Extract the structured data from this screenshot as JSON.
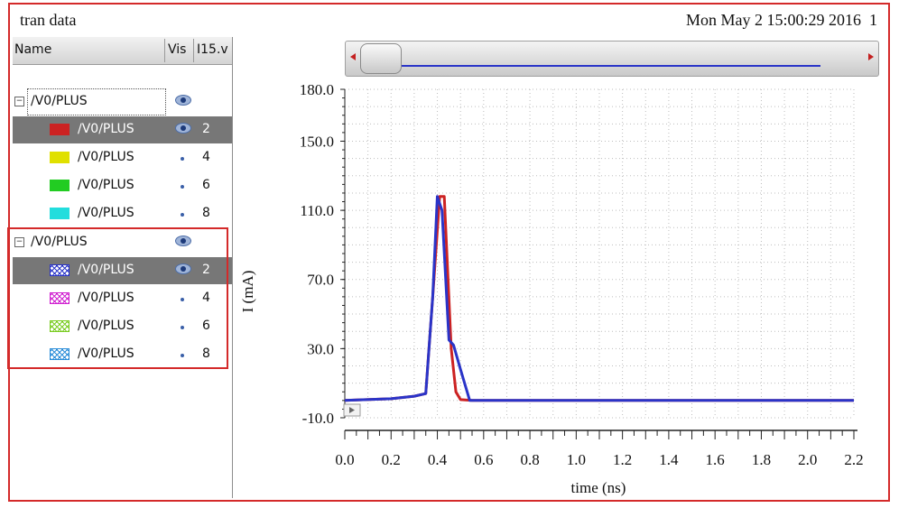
{
  "window": {
    "title": "tran data",
    "timestamp": "Mon May 2 15:00:29 2016",
    "page_number": "1"
  },
  "browser": {
    "columns": {
      "name": "Name",
      "vis": "Vis",
      "third": "I15.v"
    },
    "groups": [
      {
        "label": "/V0/PLUS",
        "traces": [
          {
            "label": "/V0/PLUS",
            "num": "2",
            "color": "#cc2222",
            "style": "solid",
            "selected": true
          },
          {
            "label": "/V0/PLUS",
            "num": "4",
            "color": "#e0e000",
            "style": "solid",
            "selected": false
          },
          {
            "label": "/V0/PLUS",
            "num": "6",
            "color": "#22cc22",
            "style": "solid",
            "selected": false
          },
          {
            "label": "/V0/PLUS",
            "num": "8",
            "color": "#22dddd",
            "style": "solid",
            "selected": false
          }
        ]
      },
      {
        "label": "/V0/PLUS",
        "traces": [
          {
            "label": "/V0/PLUS",
            "num": "2",
            "color": "#2a34c8",
            "style": "hatched",
            "selected": true
          },
          {
            "label": "/V0/PLUS",
            "num": "4",
            "color": "#d020d0",
            "style": "hatched",
            "selected": false
          },
          {
            "label": "/V0/PLUS",
            "num": "6",
            "color": "#7acc22",
            "style": "hatched",
            "selected": false
          },
          {
            "label": "/V0/PLUS",
            "num": "8",
            "color": "#2a8cd8",
            "style": "hatched",
            "selected": false
          }
        ]
      }
    ]
  },
  "chart_data": {
    "type": "line",
    "xlabel": "time (ns)",
    "ylabel": "I (mA)",
    "xlim": [
      0.0,
      2.2
    ],
    "ylim": [
      -10.0,
      180.0
    ],
    "x_ticks": [
      "0.0",
      "0.2",
      "0.4",
      "0.6",
      "0.8",
      "1.0",
      "1.2",
      "1.4",
      "1.6",
      "1.8",
      "2.0",
      "2.2"
    ],
    "y_ticks": [
      "180.0",
      "150.0",
      "110.0",
      "70.0",
      "30.0",
      "-10.0"
    ],
    "y_tick_values": [
      180,
      150,
      110,
      70,
      30,
      -10
    ],
    "grid": true,
    "series": [
      {
        "color": "#cc2222",
        "points": [
          [
            0.0,
            0.0
          ],
          [
            0.2,
            1.0
          ],
          [
            0.3,
            2.5
          ],
          [
            0.35,
            4.0
          ],
          [
            0.38,
            60.0
          ],
          [
            0.41,
            118.0
          ],
          [
            0.43,
            118.0
          ],
          [
            0.46,
            30.0
          ],
          [
            0.48,
            5.0
          ],
          [
            0.5,
            0.5
          ],
          [
            0.55,
            0.0
          ],
          [
            2.2,
            0.0
          ]
        ]
      },
      {
        "color": "#2a34c8",
        "points": [
          [
            0.0,
            0.0
          ],
          [
            0.2,
            1.0
          ],
          [
            0.3,
            2.5
          ],
          [
            0.35,
            4.0
          ],
          [
            0.38,
            60.0
          ],
          [
            0.4,
            118.0
          ],
          [
            0.42,
            110.0
          ],
          [
            0.45,
            35.0
          ],
          [
            0.47,
            32.0
          ],
          [
            0.5,
            18.0
          ],
          [
            0.54,
            0.0
          ],
          [
            2.2,
            0.0
          ]
        ]
      }
    ]
  }
}
